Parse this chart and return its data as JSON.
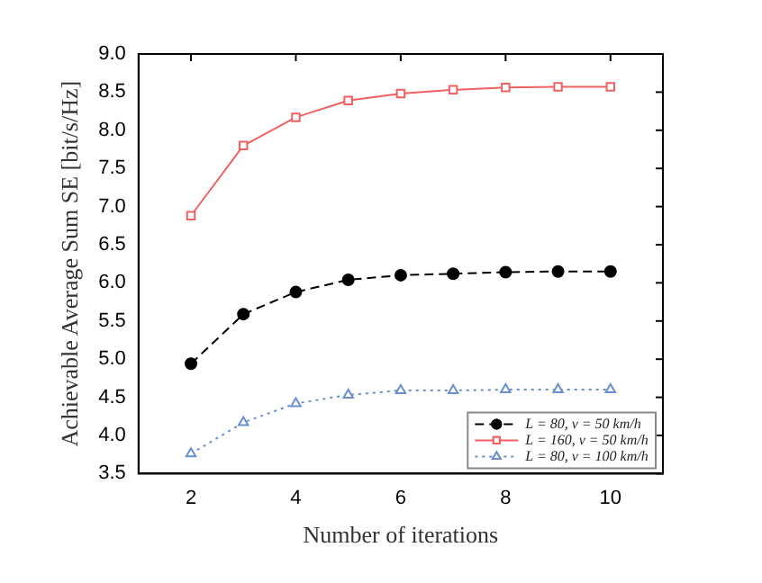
{
  "chart_data": {
    "type": "line",
    "xlabel": "Number of iterations",
    "ylabel": "Achievable Average Sum SE [bit/s/Hz]",
    "x": [
      2,
      3,
      4,
      5,
      6,
      7,
      8,
      9,
      10
    ],
    "series": [
      {
        "name": "L = 80, v = 50 km/h",
        "color": "#000000",
        "marker": "circle",
        "line_style": "dashed",
        "values": [
          4.94,
          5.59,
          5.88,
          6.04,
          6.1,
          6.12,
          6.14,
          6.15,
          6.15
        ]
      },
      {
        "name": "L = 160, v = 50 km/h",
        "color": "#f06060",
        "marker": "square",
        "line_style": "solid",
        "values": [
          6.88,
          7.8,
          8.17,
          8.39,
          8.48,
          8.53,
          8.56,
          8.57,
          8.57
        ]
      },
      {
        "name": "L = 80, v = 100 km/h",
        "color": "#6a8fd0",
        "marker": "triangle",
        "line_style": "dotted",
        "values": [
          3.76,
          4.17,
          4.42,
          4.53,
          4.59,
          4.59,
          4.6,
          4.6,
          4.6
        ]
      }
    ],
    "xlim": [
      1,
      11
    ],
    "xticks": [
      2,
      4,
      6,
      8,
      10
    ],
    "ylim": [
      3.5,
      9.0
    ],
    "yticks": [
      3.5,
      {
        "value": 4,
        "label": "4.0"
      },
      4.5,
      {
        "value": 5,
        "label": "5.0"
      },
      5.5,
      {
        "value": 6,
        "label": "6.0"
      },
      6.5,
      {
        "value": 7,
        "label": "7.0"
      },
      7.5,
      {
        "value": 8,
        "label": "8.0"
      },
      8.5,
      {
        "value": 9,
        "label": "9.0"
      }
    ],
    "grid": false,
    "legend": "bottom right"
  }
}
